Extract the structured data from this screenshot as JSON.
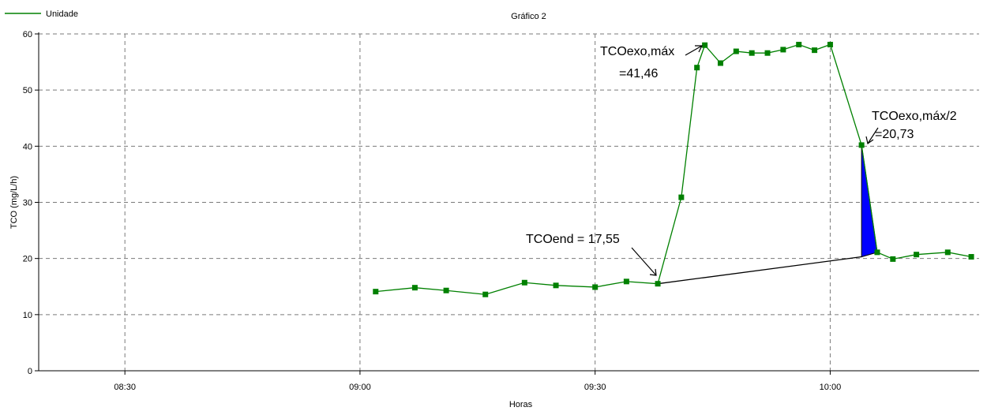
{
  "chart_data": {
    "type": "line",
    "title": "Gráfico 2",
    "xlabel": "Horas",
    "ylabel": "TCO (mg/L/h)",
    "xlim": [
      "08:19",
      "10:19"
    ],
    "ylim": [
      0,
      60
    ],
    "xticks": [
      "08:30",
      "09:00",
      "09:30",
      "10:00"
    ],
    "yticks": [
      0,
      10,
      20,
      30,
      40,
      50,
      60
    ],
    "grid": true,
    "legend_position": "top-left",
    "series_color": "#008000",
    "fill_color": "#0000ff",
    "series": [
      {
        "name": "Unidade",
        "points": [
          [
            "09:02",
            14.1
          ],
          [
            "09:07",
            14.8
          ],
          [
            "09:11",
            14.3
          ],
          [
            "09:16",
            13.6
          ],
          [
            "09:21",
            15.7
          ],
          [
            "09:25",
            15.2
          ],
          [
            "09:30",
            14.9
          ],
          [
            "09:34",
            15.9
          ],
          [
            "09:38",
            15.5
          ],
          [
            "09:41",
            30.9
          ],
          [
            "09:43",
            54.0
          ],
          [
            "09:44",
            58.0
          ],
          [
            "09:46",
            54.8
          ],
          [
            "09:48",
            56.9
          ],
          [
            "09:50",
            56.6
          ],
          [
            "09:52",
            56.6
          ],
          [
            "09:54",
            57.2
          ],
          [
            "09:56",
            58.1
          ],
          [
            "09:58",
            57.1
          ],
          [
            "10:00",
            58.1
          ],
          [
            "10:04",
            40.2
          ],
          [
            "10:06",
            21.1
          ],
          [
            "10:08",
            19.9
          ],
          [
            "10:11",
            20.7
          ],
          [
            "10:15",
            21.1
          ],
          [
            "10:18",
            20.3
          ]
        ]
      }
    ],
    "baseline": [
      [
        "09:38",
        15.5
      ],
      [
        "10:04",
        20.3
      ]
    ],
    "annotations": [
      {
        "line1": "TCOexo,máx",
        "line2": "=41,46"
      },
      {
        "line1": "TCOexo,máx/2",
        "line2": "=20,73"
      },
      {
        "line1": "TCOend = 17,55"
      }
    ]
  }
}
